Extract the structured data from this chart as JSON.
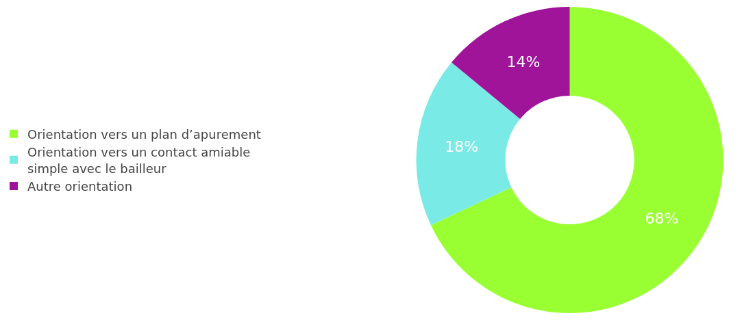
{
  "chart_data": {
    "type": "donut",
    "categories": [
      "Orientation vers un plan d’apurement",
      "Orientation vers un contact amiable simple avec le bailleur",
      "Autre orientation"
    ],
    "values": [
      68,
      18,
      14
    ],
    "value_labels": [
      "68%",
      "18%",
      "14%"
    ],
    "colors": [
      "#99ff33",
      "#7aeae6",
      "#a0149a"
    ],
    "legend": "left"
  }
}
